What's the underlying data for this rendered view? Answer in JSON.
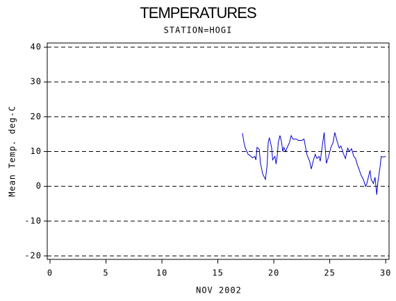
{
  "chart_data": {
    "type": "line",
    "title": "TEMPERATURES",
    "subtitle": "STATION=HOGI",
    "x_label": "NOV 2002",
    "y_label": "Mean Temp. deg-C",
    "xlim": [
      -0.25,
      30.3
    ],
    "xticks": [
      0,
      5,
      10,
      15,
      20,
      25,
      30
    ],
    "ylim": [
      -21,
      41.2
    ],
    "yticks": [
      -20,
      -10,
      0,
      10,
      20,
      30,
      40
    ],
    "grid": true,
    "series": [
      {
        "color": "#0000cc",
        "x": [
          17.2,
          17.33,
          17.45,
          17.6,
          17.7,
          17.9,
          18.1,
          18.3,
          18.4,
          18.5,
          18.7,
          18.8,
          19.0,
          19.25,
          19.4,
          19.5,
          19.6,
          19.8,
          19.9,
          20.1,
          20.2,
          20.3,
          20.4,
          20.55,
          20.7,
          20.8,
          20.9,
          21.05,
          21.2,
          21.4,
          21.55,
          21.7,
          22.0,
          22.2,
          22.5,
          22.7,
          22.85,
          22.95,
          23.2,
          23.35,
          23.55,
          23.7,
          23.85,
          24.05,
          24.15,
          24.35,
          24.5,
          24.6,
          24.7,
          24.9,
          25.1,
          25.3,
          25.45,
          25.65,
          25.85,
          26.0,
          26.2,
          26.4,
          26.6,
          26.75,
          26.95,
          27.15,
          27.3,
          27.45,
          27.65,
          27.8,
          28.0,
          28.2,
          28.3,
          28.45,
          28.6,
          28.7,
          28.9,
          29.05,
          29.2,
          29.3,
          29.5,
          29.6,
          29.8,
          30.0
        ],
        "values": [
          15.3,
          12.6,
          11,
          10,
          9.2,
          8.8,
          8.2,
          8.6,
          7.6,
          11.2,
          10.6,
          6.8,
          3.6,
          2.0,
          6,
          12.6,
          14,
          11.2,
          7.6,
          8.6,
          6.4,
          8.6,
          12.6,
          14.6,
          12.6,
          10,
          11.2,
          10,
          11.2,
          12.6,
          14.6,
          13.6,
          13.6,
          13.2,
          13.2,
          13.6,
          11,
          9.2,
          7.2,
          5,
          7.6,
          9.2,
          8,
          8.6,
          7.2,
          12,
          15.5,
          10.6,
          6.6,
          8.6,
          11.2,
          12.6,
          15.5,
          13,
          11,
          11.6,
          9.6,
          8,
          11,
          10,
          10.8,
          8.6,
          8,
          6.4,
          4.6,
          3.2,
          2,
          0,
          0.6,
          2.6,
          4.6,
          2,
          0.8,
          2.6,
          -2.4,
          1.2,
          5.6,
          8.6,
          8.4,
          8.6
        ]
      }
    ]
  }
}
